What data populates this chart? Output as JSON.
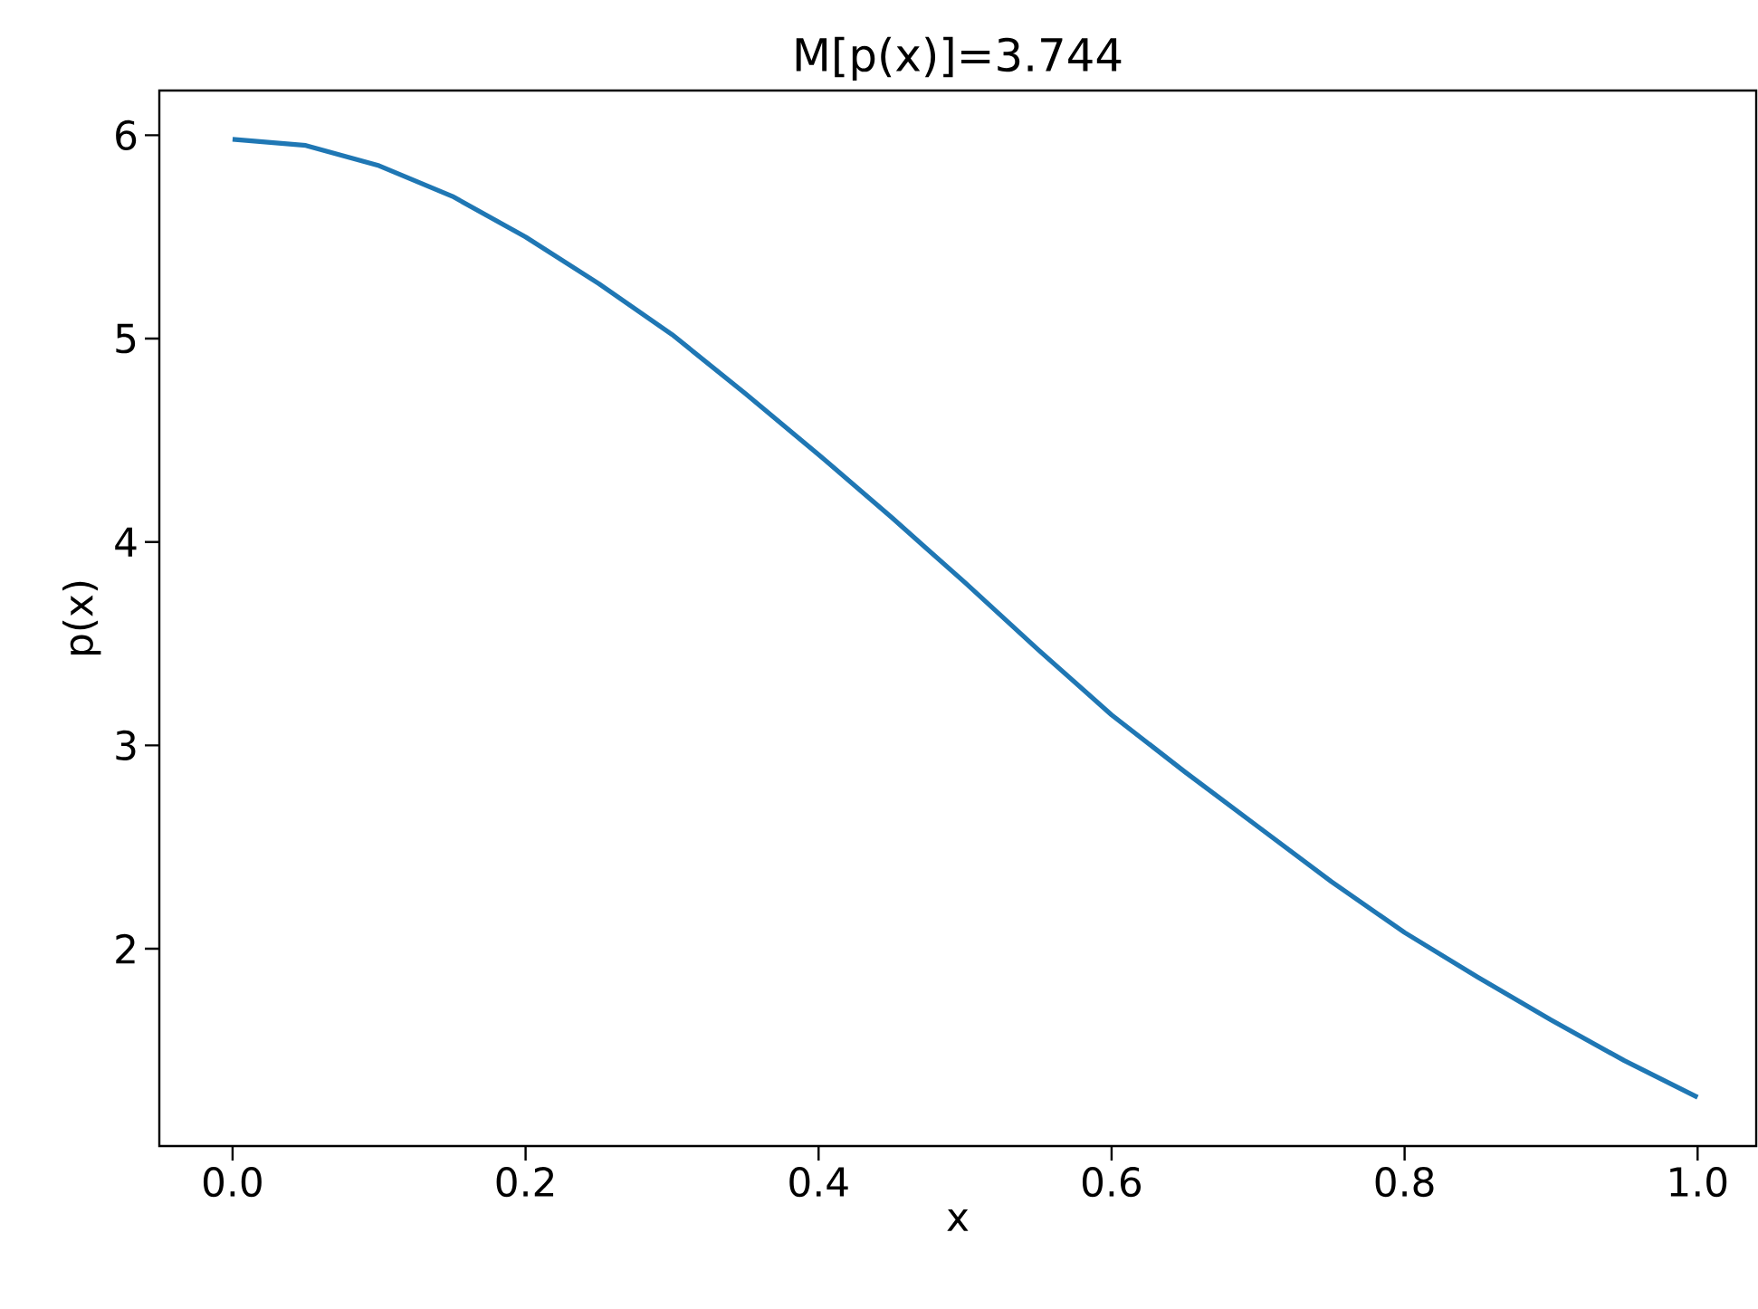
{
  "chart_data": {
    "type": "line",
    "title": "M[p(x)]=3.744",
    "xlabel": "x",
    "ylabel": "p(x)",
    "x": [
      0,
      0.05,
      0.1,
      0.15,
      0.2,
      0.25,
      0.3,
      0.35,
      0.4,
      0.45,
      0.5,
      0.55,
      0.6,
      0.65,
      0.7,
      0.75,
      0.8,
      0.85,
      0.9,
      0.95,
      1.0
    ],
    "series": [
      {
        "color": "#1f77b4",
        "values": [
          5.98,
          5.95,
          5.85,
          5.7,
          5.5,
          5.27,
          5.02,
          4.73,
          4.43,
          4.12,
          3.8,
          3.47,
          3.15,
          2.87,
          2.6,
          2.33,
          2.08,
          1.86,
          1.65,
          1.45,
          1.27
        ]
      }
    ],
    "xlim": [
      -0.05,
      1.04
    ],
    "ylim": [
      1.03,
      6.22
    ],
    "xticks": [
      {
        "value": 0,
        "label": "0.0"
      },
      {
        "value": 0.2,
        "label": "0.2"
      },
      {
        "value": 0.4,
        "label": "0.4"
      },
      {
        "value": 0.6,
        "label": "0.6"
      },
      {
        "value": 0.8,
        "label": "0.8"
      },
      {
        "value": 1.0,
        "label": "1.0"
      }
    ],
    "yticks": [
      2,
      3,
      4,
      5,
      6
    ],
    "grid": false,
    "marker": "none",
    "line_style": "solid"
  }
}
